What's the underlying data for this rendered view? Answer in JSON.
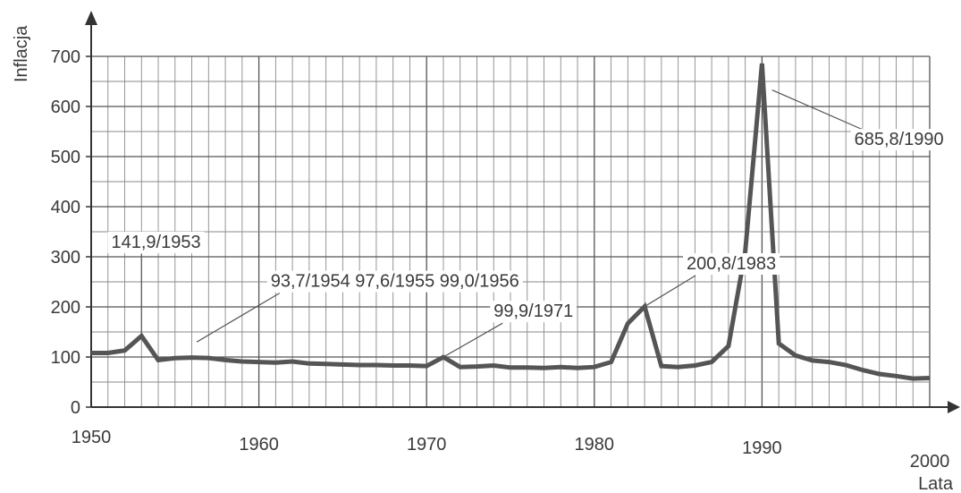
{
  "chart_data": {
    "type": "line",
    "ylabel": "Inflacja",
    "xlabel": "Lata",
    "xlim": [
      1950,
      2000
    ],
    "ylim": [
      0,
      700
    ],
    "x_ticks": [
      {
        "value": 1950,
        "label": "1950"
      },
      {
        "value": 1960,
        "label": "1960"
      },
      {
        "value": 1970,
        "label": "1970"
      },
      {
        "value": 1980,
        "label": "1980"
      },
      {
        "value": 1990,
        "label": "1990"
      },
      {
        "value": 2000,
        "label": "2000"
      }
    ],
    "y_ticks": [
      {
        "value": 0,
        "label": "0"
      },
      {
        "value": 100,
        "label": "100"
      },
      {
        "value": 200,
        "label": "200"
      },
      {
        "value": 300,
        "label": "300"
      },
      {
        "value": 400,
        "label": "400"
      },
      {
        "value": 500,
        "label": "500"
      },
      {
        "value": 600,
        "label": "600"
      },
      {
        "value": 700,
        "label": "700"
      }
    ],
    "grid": true,
    "series": [
      {
        "color": "#555555",
        "points": [
          [
            1950,
            108
          ],
          [
            1951,
            108
          ],
          [
            1952,
            113
          ],
          [
            1953,
            141.9
          ],
          [
            1954,
            93.7
          ],
          [
            1955,
            97.6
          ],
          [
            1956,
            99.0
          ],
          [
            1957,
            98
          ],
          [
            1958,
            94
          ],
          [
            1959,
            91
          ],
          [
            1960,
            90
          ],
          [
            1961,
            89
          ],
          [
            1962,
            91
          ],
          [
            1963,
            87
          ],
          [
            1964,
            86
          ],
          [
            1965,
            85
          ],
          [
            1966,
            84
          ],
          [
            1967,
            84
          ],
          [
            1968,
            83
          ],
          [
            1969,
            83
          ],
          [
            1970,
            82
          ],
          [
            1971,
            99.9
          ],
          [
            1972,
            80
          ],
          [
            1973,
            81
          ],
          [
            1974,
            83
          ],
          [
            1975,
            79
          ],
          [
            1976,
            79
          ],
          [
            1977,
            78
          ],
          [
            1978,
            80
          ],
          [
            1979,
            78
          ],
          [
            1980,
            80
          ],
          [
            1981,
            90
          ],
          [
            1982,
            167
          ],
          [
            1983,
            200.8
          ],
          [
            1984,
            82
          ],
          [
            1985,
            80
          ],
          [
            1986,
            83
          ],
          [
            1987,
            90
          ],
          [
            1988,
            122
          ],
          [
            1989,
            310
          ],
          [
            1990,
            685.8
          ],
          [
            1991,
            127
          ],
          [
            1992,
            103
          ],
          [
            1993,
            93
          ],
          [
            1994,
            90
          ],
          [
            1995,
            84
          ],
          [
            1996,
            74
          ],
          [
            1997,
            66
          ],
          [
            1998,
            62
          ],
          [
            1999,
            57
          ],
          [
            2000,
            58
          ]
        ]
      }
    ],
    "annotations": [
      {
        "text": "141,9/1953",
        "point": [
          1953,
          141.9
        ],
        "label_at": [
          1951.2,
          318
        ]
      },
      {
        "text": "93,7/1954 97,6/1955 99,0/1956",
        "point": [
          1956.3,
          130
        ],
        "label_at": [
          1960.7,
          240
        ]
      },
      {
        "text": "99,9/1971",
        "point": [
          1971,
          99.9
        ],
        "label_at": [
          1974,
          180
        ]
      },
      {
        "text": "200,8/1983",
        "point": [
          1983,
          200.8
        ],
        "label_at": [
          1985.5,
          275
        ]
      },
      {
        "text": "685,8/1990",
        "point": [
          1990.6,
          633
        ],
        "label_at": [
          1995.5,
          523
        ]
      }
    ]
  }
}
